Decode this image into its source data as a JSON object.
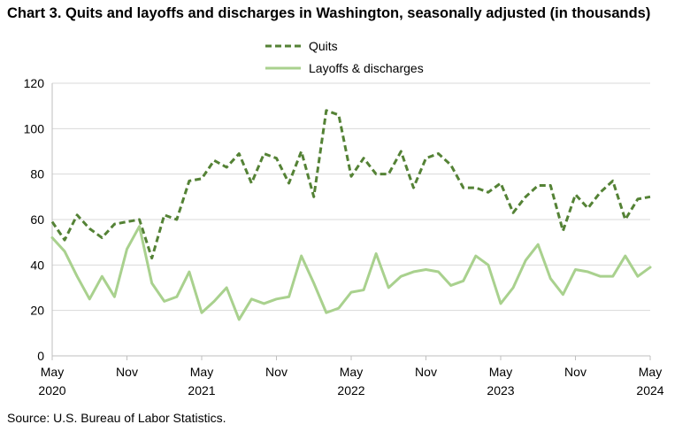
{
  "title": "Chart 3. Quits and layoffs and discharges in Washington, seasonally adjusted (in thousands)",
  "source": "Source: U.S. Bureau of Labor Statistics.",
  "chart_data": {
    "type": "line",
    "title": "Chart 3. Quits and layoffs and discharges in Washington, seasonally adjusted (in thousands)",
    "xlabel": "",
    "ylabel": "",
    "ylim": [
      0,
      120
    ],
    "yticks": [
      "0",
      "20",
      "40",
      "60",
      "80",
      "100",
      "120"
    ],
    "x_start": "2020-05",
    "x_end": "2024-05",
    "xtick_labels": [
      {
        "month": "May",
        "year": "2020"
      },
      {
        "month": "Nov",
        "year": ""
      },
      {
        "month": "May",
        "year": "2021"
      },
      {
        "month": "Nov",
        "year": ""
      },
      {
        "month": "May",
        "year": "2022"
      },
      {
        "month": "Nov",
        "year": ""
      },
      {
        "month": "May",
        "year": "2023"
      },
      {
        "month": "Nov",
        "year": ""
      },
      {
        "month": "May",
        "year": "2024"
      }
    ],
    "grid": true,
    "legend": "top-center",
    "series": [
      {
        "name": "Quits",
        "color": "#548235",
        "style": "dashed",
        "values": [
          59,
          51,
          62,
          56,
          52,
          58,
          59,
          60,
          43,
          62,
          60,
          77,
          78,
          86,
          83,
          89,
          76,
          89,
          87,
          76,
          90,
          70,
          108,
          106,
          79,
          87,
          80,
          80,
          90,
          74,
          87,
          89,
          84,
          74,
          74,
          72,
          76,
          63,
          70,
          75,
          75,
          55,
          71,
          65,
          72,
          77,
          60,
          69,
          70
        ]
      },
      {
        "name": "Layoffs & discharges",
        "color": "#a9d18e",
        "style": "solid",
        "values": [
          52,
          46,
          35,
          25,
          35,
          26,
          47,
          57,
          32,
          24,
          26,
          37,
          19,
          24,
          30,
          16,
          25,
          23,
          25,
          26,
          44,
          32,
          19,
          21,
          28,
          29,
          45,
          30,
          35,
          37,
          38,
          37,
          31,
          33,
          44,
          40,
          23,
          30,
          42,
          49,
          34,
          27,
          38,
          37,
          35,
          35,
          44,
          35,
          39
        ]
      }
    ]
  }
}
